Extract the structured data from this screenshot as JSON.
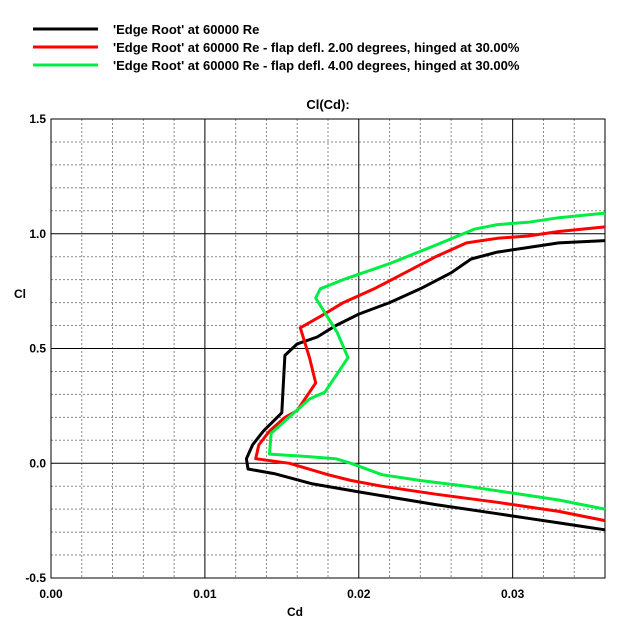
{
  "chart_data": {
    "type": "line",
    "title": "Cl(Cd):",
    "xlabel": "Cd",
    "ylabel": "Cl",
    "xlim": [
      0.0,
      0.036
    ],
    "ylim": [
      -0.5,
      1.5
    ],
    "x_ticks": [
      "0.00",
      "0.01",
      "0.02",
      "0.03"
    ],
    "y_ticks": [
      "1.5",
      "1.0",
      "0.5",
      "0.0",
      "-0.5"
    ],
    "grid": true,
    "legend_position": "top-left",
    "series": [
      {
        "name": "'Edge Root' at 60000 Re",
        "color": "#000000",
        "points": [
          [
            0.036,
            -0.29
          ],
          [
            0.0345,
            -0.275
          ],
          [
            0.033,
            -0.26
          ],
          [
            0.031,
            -0.24
          ],
          [
            0.029,
            -0.22
          ],
          [
            0.025,
            -0.18
          ],
          [
            0.02,
            -0.125
          ],
          [
            0.017,
            -0.09
          ],
          [
            0.0145,
            -0.045
          ],
          [
            0.0128,
            -0.025
          ],
          [
            0.0127,
            0.02
          ],
          [
            0.0131,
            0.08
          ],
          [
            0.0138,
            0.14
          ],
          [
            0.015,
            0.22
          ],
          [
            0.0151,
            0.35
          ],
          [
            0.0152,
            0.47
          ],
          [
            0.016,
            0.52
          ],
          [
            0.0173,
            0.55
          ],
          [
            0.0185,
            0.6
          ],
          [
            0.02,
            0.65
          ],
          [
            0.022,
            0.7
          ],
          [
            0.024,
            0.76
          ],
          [
            0.026,
            0.83
          ],
          [
            0.0273,
            0.89
          ],
          [
            0.029,
            0.92
          ],
          [
            0.031,
            0.94
          ],
          [
            0.033,
            0.96
          ],
          [
            0.036,
            0.97
          ]
        ]
      },
      {
        "name": "'Edge Root' at 60000 Re - flap defl. 2.00 degrees, hinged at 30.00%",
        "color": "#ff0000",
        "points": [
          [
            0.036,
            -0.25
          ],
          [
            0.0345,
            -0.23
          ],
          [
            0.033,
            -0.21
          ],
          [
            0.031,
            -0.19
          ],
          [
            0.029,
            -0.17
          ],
          [
            0.025,
            -0.135
          ],
          [
            0.0215,
            -0.1
          ],
          [
            0.0195,
            -0.075
          ],
          [
            0.018,
            -0.05
          ],
          [
            0.0155,
            0.0
          ],
          [
            0.0133,
            0.02
          ],
          [
            0.0135,
            0.08
          ],
          [
            0.0142,
            0.14
          ],
          [
            0.0152,
            0.2
          ],
          [
            0.016,
            0.23
          ],
          [
            0.0172,
            0.35
          ],
          [
            0.0168,
            0.46
          ],
          [
            0.0162,
            0.59
          ],
          [
            0.0175,
            0.64
          ],
          [
            0.019,
            0.7
          ],
          [
            0.021,
            0.76
          ],
          [
            0.023,
            0.83
          ],
          [
            0.025,
            0.9
          ],
          [
            0.027,
            0.96
          ],
          [
            0.029,
            0.98
          ],
          [
            0.031,
            0.99
          ],
          [
            0.033,
            1.01
          ],
          [
            0.036,
            1.03
          ]
        ]
      },
      {
        "name": "'Edge Root' at 60000 Re - flap defl. 4.00 degrees, hinged at 30.00%",
        "color": "#00ee44",
        "points": [
          [
            0.036,
            -0.2
          ],
          [
            0.0345,
            -0.18
          ],
          [
            0.033,
            -0.16
          ],
          [
            0.031,
            -0.14
          ],
          [
            0.029,
            -0.12
          ],
          [
            0.027,
            -0.1
          ],
          [
            0.024,
            -0.075
          ],
          [
            0.0215,
            -0.05
          ],
          [
            0.0195,
            0.0
          ],
          [
            0.0185,
            0.02
          ],
          [
            0.0165,
            0.03
          ],
          [
            0.0142,
            0.04
          ],
          [
            0.0143,
            0.13
          ],
          [
            0.0158,
            0.22
          ],
          [
            0.0168,
            0.28
          ],
          [
            0.0178,
            0.31
          ],
          [
            0.0193,
            0.46
          ],
          [
            0.0186,
            0.57
          ],
          [
            0.0172,
            0.72
          ],
          [
            0.0175,
            0.76
          ],
          [
            0.019,
            0.8
          ],
          [
            0.022,
            0.87
          ],
          [
            0.025,
            0.95
          ],
          [
            0.0275,
            1.02
          ],
          [
            0.029,
            1.04
          ],
          [
            0.031,
            1.05
          ],
          [
            0.033,
            1.07
          ],
          [
            0.036,
            1.09
          ]
        ]
      }
    ]
  }
}
